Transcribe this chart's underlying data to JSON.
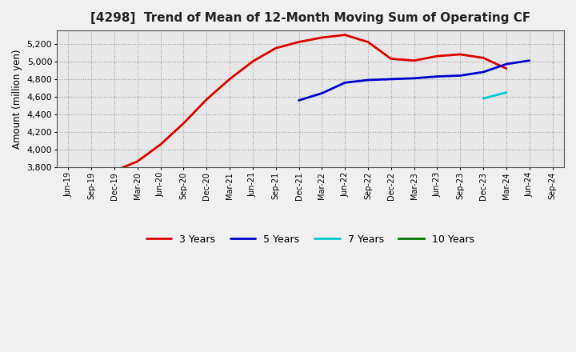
{
  "title": "[4298]  Trend of Mean of 12-Month Moving Sum of Operating CF",
  "ylabel": "Amount (million yen)",
  "background_color": "#f0f0f0",
  "plot_bg_color": "#e8e8e8",
  "grid_color": "#999999",
  "ylim": [
    3800,
    5350
  ],
  "yticks": [
    3800,
    4000,
    4200,
    4400,
    4600,
    4800,
    5000,
    5200
  ],
  "x_labels": [
    "Jun-19",
    "Sep-19",
    "Dec-19",
    "Mar-20",
    "Jun-20",
    "Sep-20",
    "Dec-20",
    "Mar-21",
    "Jun-21",
    "Sep-21",
    "Dec-21",
    "Mar-22",
    "Jun-22",
    "Sep-22",
    "Dec-22",
    "Mar-23",
    "Jun-23",
    "Sep-23",
    "Dec-23",
    "Mar-24",
    "Jun-24",
    "Sep-24"
  ],
  "series_3yr": {
    "label": "3 Years",
    "color": "#dd0000",
    "values": [
      null,
      null,
      3760,
      3870,
      4060,
      4300,
      4570,
      4800,
      5000,
      5150,
      5220,
      5270,
      5300,
      5220,
      5030,
      5010,
      5060,
      5080,
      5040,
      4920,
      null,
      null
    ]
  },
  "series_5yr": {
    "label": "5 Years",
    "color": "#0000cc",
    "values": [
      null,
      null,
      null,
      null,
      null,
      null,
      null,
      null,
      null,
      null,
      4560,
      4640,
      4760,
      4790,
      4800,
      4810,
      4830,
      4840,
      4880,
      4970,
      5010,
      null
    ]
  },
  "series_7yr": {
    "label": "7 Years",
    "color": "#00cccc",
    "values": [
      null,
      null,
      null,
      null,
      null,
      null,
      null,
      null,
      null,
      null,
      null,
      null,
      null,
      null,
      null,
      null,
      null,
      null,
      4580,
      4650,
      null,
      null
    ]
  },
  "series_10yr": {
    "label": "10 Years",
    "color": "#007700",
    "values": []
  }
}
